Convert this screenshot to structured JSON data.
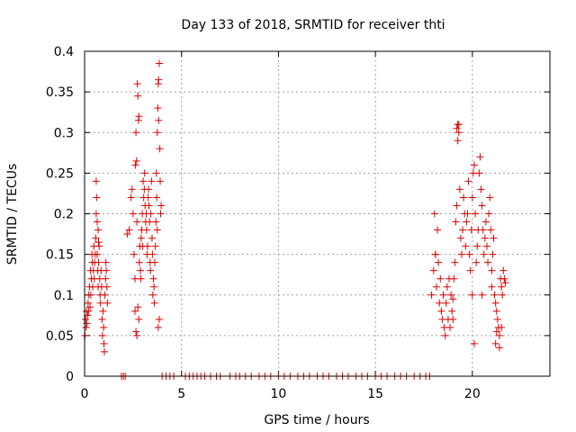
{
  "chart_data": {
    "type": "scatter",
    "title": "Day 133 of 2018, SRMTID for receiver thti",
    "xlabel": "GPS time / hours",
    "ylabel": "SRMTID / TECUs",
    "xlim": [
      0,
      24
    ],
    "ylim": [
      0,
      0.4
    ],
    "xticks": [
      0,
      5,
      10,
      15,
      20
    ],
    "xtick_labels": [
      "0",
      "5",
      "10",
      "15",
      "20"
    ],
    "yticks": [
      0,
      0.05,
      0.1,
      0.15,
      0.2,
      0.25,
      0.3,
      0.35,
      0.4
    ],
    "ytick_labels": [
      "0",
      "0.05",
      "0.1",
      "0.15",
      "0.2",
      "0.25",
      "0.3",
      "0.35",
      "0.4"
    ],
    "grid": true,
    "marker": "+",
    "series": [
      {
        "name": "SRMTID",
        "color": "#dd0000",
        "x": [
          0.02,
          0.05,
          0.08,
          0.1,
          0.12,
          0.15,
          0.18,
          0.2,
          0.22,
          0.25,
          0.28,
          0.3,
          0.32,
          0.35,
          0.38,
          0.4,
          0.42,
          0.45,
          0.48,
          0.5,
          0.52,
          0.55,
          0.58,
          0.6,
          0.62,
          0.65,
          0.68,
          0.7,
          0.72,
          0.75,
          0.78,
          0.8,
          0.82,
          0.85,
          0.88,
          0.9,
          0.92,
          0.95,
          0.98,
          1.0,
          1.02,
          1.05,
          1.08,
          1.1,
          1.12,
          1.15,
          1.18,
          0.7,
          0.72,
          0.6,
          0.65,
          2.2,
          2.3,
          2.4,
          2.45,
          2.5,
          2.55,
          2.6,
          2.62,
          2.65,
          2.68,
          2.7,
          2.72,
          2.75,
          2.78,
          2.8,
          2.82,
          2.85,
          2.88,
          2.9,
          2.92,
          2.95,
          2.98,
          3.0,
          3.02,
          3.05,
          3.08,
          3.1,
          3.12,
          3.15,
          3.18,
          3.2,
          3.22,
          3.25,
          3.28,
          3.3,
          3.32,
          3.35,
          3.38,
          3.4,
          3.42,
          3.45,
          3.48,
          3.5,
          3.52,
          3.55,
          3.58,
          3.6,
          3.62,
          3.65,
          3.68,
          3.7,
          3.72,
          3.75,
          3.78,
          3.8,
          3.82,
          3.85,
          3.88,
          3.9,
          3.92,
          3.95,
          2.6,
          2.65,
          2.7,
          2.75,
          2.8,
          3.8,
          3.85,
          3.82,
          3.75,
          1.9,
          2.0,
          2.1,
          4.0,
          4.2,
          4.4,
          4.6,
          5.2,
          5.4,
          5.6,
          5.8,
          6.0,
          6.2,
          6.5,
          6.8,
          7.0,
          7.5,
          7.8,
          8.0,
          8.3,
          8.6,
          9.0,
          9.3,
          9.6,
          10.0,
          10.3,
          10.6,
          11.0,
          11.3,
          11.6,
          12.0,
          12.3,
          12.6,
          13.0,
          13.3,
          13.6,
          14.0,
          14.3,
          14.6,
          15.0,
          15.3,
          15.6,
          16.0,
          16.3,
          16.6,
          17.0,
          17.3,
          17.6,
          17.8,
          17.9,
          18.0,
          18.05,
          18.1,
          18.15,
          18.2,
          18.25,
          18.3,
          18.35,
          18.4,
          18.45,
          18.5,
          18.55,
          18.6,
          18.65,
          18.7,
          18.75,
          18.8,
          18.85,
          18.9,
          18.95,
          19.0,
          19.05,
          19.1,
          19.15,
          19.2,
          19.25,
          19.3,
          19.35,
          19.4,
          19.45,
          19.5,
          19.55,
          19.6,
          19.65,
          19.7,
          19.75,
          19.8,
          19.85,
          19.9,
          19.95,
          20.0,
          20.05,
          20.1,
          20.15,
          20.2,
          20.25,
          20.3,
          20.35,
          20.4,
          20.45,
          20.5,
          20.55,
          20.6,
          20.65,
          20.7,
          20.75,
          20.8,
          20.85,
          20.9,
          20.95,
          21.0,
          21.05,
          21.1,
          21.15,
          21.2,
          21.25,
          21.3,
          21.35,
          21.4,
          21.45,
          21.5,
          21.55,
          21.6,
          21.65,
          21.7,
          19.2,
          19.25,
          19.3,
          20.0,
          20.1,
          21.2,
          21.25,
          21.4,
          21.5,
          18.1,
          19.0,
          20.5,
          21.0
        ],
        "y": [
          0.05,
          0.07,
          0.06,
          0.08,
          0.065,
          0.075,
          0.09,
          0.08,
          0.1,
          0.11,
          0.085,
          0.13,
          0.1,
          0.12,
          0.15,
          0.14,
          0.11,
          0.13,
          0.16,
          0.12,
          0.14,
          0.15,
          0.17,
          0.24,
          0.22,
          0.15,
          0.13,
          0.11,
          0.14,
          0.16,
          0.12,
          0.1,
          0.09,
          0.13,
          0.11,
          0.07,
          0.05,
          0.08,
          0.06,
          0.04,
          0.03,
          0.1,
          0.12,
          0.14,
          0.13,
          0.11,
          0.09,
          0.18,
          0.165,
          0.2,
          0.19,
          0.175,
          0.18,
          0.22,
          0.23,
          0.2,
          0.15,
          0.12,
          0.26,
          0.3,
          0.265,
          0.19,
          0.36,
          0.345,
          0.315,
          0.32,
          0.14,
          0.16,
          0.13,
          0.12,
          0.17,
          0.18,
          0.2,
          0.16,
          0.24,
          0.22,
          0.23,
          0.25,
          0.21,
          0.19,
          0.2,
          0.18,
          0.15,
          0.16,
          0.22,
          0.23,
          0.21,
          0.19,
          0.14,
          0.13,
          0.2,
          0.24,
          0.17,
          0.15,
          0.1,
          0.12,
          0.11,
          0.09,
          0.14,
          0.16,
          0.19,
          0.25,
          0.22,
          0.18,
          0.33,
          0.36,
          0.365,
          0.385,
          0.28,
          0.24,
          0.2,
          0.21,
          0.08,
          0.055,
          0.05,
          0.085,
          0.07,
          0.06,
          0.07,
          0.315,
          0.3,
          0,
          0,
          0,
          0,
          0,
          0,
          0,
          0,
          0,
          0,
          0,
          0,
          0,
          0,
          0,
          0,
          0,
          0,
          0,
          0,
          0,
          0,
          0,
          0,
          0,
          0,
          0,
          0,
          0,
          0,
          0,
          0,
          0,
          0,
          0,
          0,
          0,
          0,
          0,
          0,
          0,
          0,
          0,
          0,
          0,
          0,
          0,
          0,
          0,
          0.1,
          0.13,
          0.2,
          0.15,
          0.11,
          0.18,
          0.14,
          0.09,
          0.12,
          0.08,
          0.07,
          0.1,
          0.06,
          0.05,
          0.09,
          0.11,
          0.07,
          0.12,
          0.06,
          0.1,
          0.08,
          0.07,
          0.12,
          0.14,
          0.19,
          0.21,
          0.29,
          0.31,
          0.23,
          0.17,
          0.15,
          0.18,
          0.22,
          0.2,
          0.16,
          0.19,
          0.2,
          0.24,
          0.15,
          0.13,
          0.18,
          0.22,
          0.25,
          0.26,
          0.2,
          0.14,
          0.16,
          0.18,
          0.25,
          0.27,
          0.23,
          0.21,
          0.18,
          0.15,
          0.17,
          0.19,
          0.16,
          0.14,
          0.2,
          0.22,
          0.18,
          0.13,
          0.15,
          0.17,
          0.1,
          0.09,
          0.08,
          0.07,
          0.06,
          0.05,
          0.12,
          0.11,
          0.1,
          0.13,
          0.12,
          0.115,
          0.305,
          0.31,
          0.3,
          0.1,
          0.04,
          0.04,
          0.055,
          0.035,
          0.06,
          0.15,
          0.095,
          0.1,
          0.11
        ]
      }
    ]
  }
}
